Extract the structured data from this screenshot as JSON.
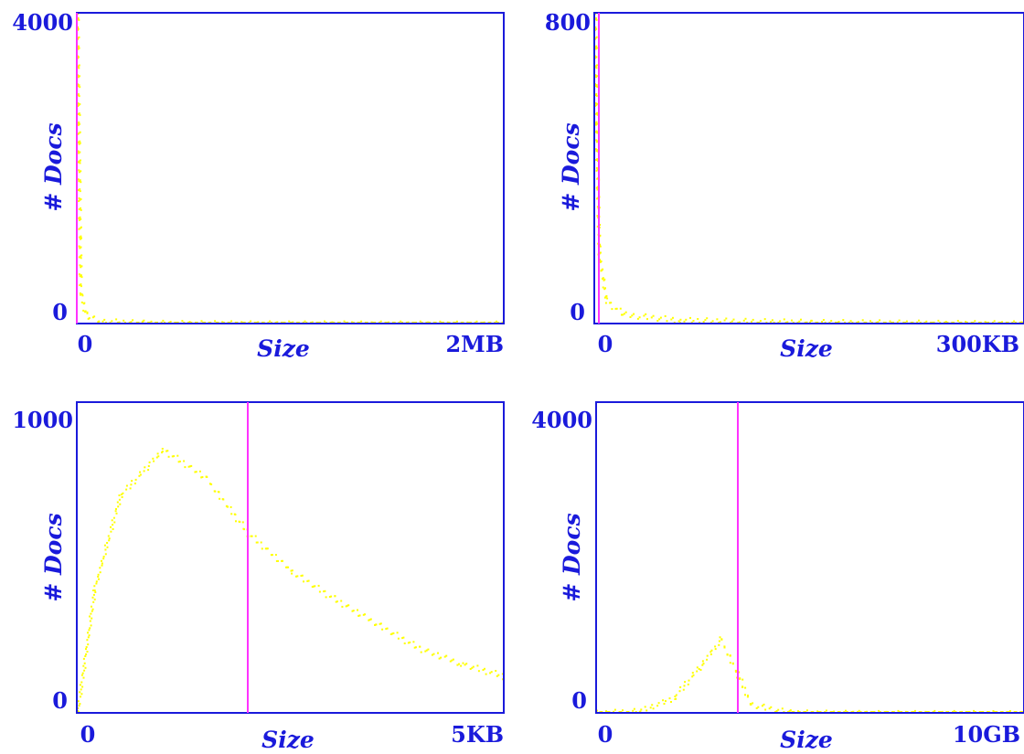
{
  "colors": {
    "frame": "#1a1adb",
    "points": "#ffff00",
    "marker": "#ff33ff",
    "background": "#ffffff"
  },
  "chart_data": [
    {
      "type": "scatter",
      "xlabel": "Size",
      "ylabel": "# Docs",
      "x_tick_labels": [
        "0",
        "2MB"
      ],
      "y_tick_labels": [
        "4000",
        "0"
      ],
      "xlim": [
        0,
        2000000
      ],
      "ylim": [
        0,
        4000
      ],
      "x_unit": "bytes",
      "marker_line_x": 0,
      "series": [
        {
          "shape": "spike at zero, then near-zero flat tail",
          "points": [
            [
              0,
              4000
            ],
            [
              15000,
              400
            ],
            [
              40000,
              120
            ],
            [
              100000,
              40
            ],
            [
              300000,
              15
            ],
            [
              600000,
              8
            ],
            [
              1000000,
              5
            ],
            [
              2000000,
              2
            ]
          ]
        }
      ]
    },
    {
      "type": "scatter",
      "xlabel": "Size",
      "ylabel": "# Docs",
      "x_tick_labels": [
        "0",
        "300KB"
      ],
      "y_tick_labels": [
        "800",
        "0"
      ],
      "xlim": [
        0,
        300000
      ],
      "ylim": [
        0,
        800
      ],
      "x_unit": "bytes",
      "marker_line_x": 1000,
      "series": [
        {
          "shape": "sharp decay",
          "points": [
            [
              200,
              800
            ],
            [
              1000,
              500
            ],
            [
              3000,
              180
            ],
            [
              8000,
              60
            ],
            [
              20000,
              25
            ],
            [
              60000,
              10
            ],
            [
              150000,
              5
            ],
            [
              300000,
              1
            ]
          ]
        }
      ]
    },
    {
      "type": "scatter",
      "xlabel": "Size",
      "ylabel": "# Docs",
      "x_tick_labels": [
        "0",
        "5KB"
      ],
      "y_tick_labels": [
        "1000",
        "0"
      ],
      "xlim": [
        0,
        5000
      ],
      "ylim": [
        0,
        1000
      ],
      "x_unit": "bytes",
      "marker_line_x": 2000,
      "series": [
        {
          "shape": "rise to peak then long decay",
          "points": [
            [
              0,
              0
            ],
            [
              200,
              400
            ],
            [
              500,
              700
            ],
            [
              1000,
              850
            ],
            [
              1500,
              760
            ],
            [
              2000,
              580
            ],
            [
              2500,
              460
            ],
            [
              3000,
              370
            ],
            [
              3500,
              290
            ],
            [
              4000,
              210
            ],
            [
              4500,
              160
            ],
            [
              5000,
              120
            ]
          ]
        }
      ]
    },
    {
      "type": "scatter",
      "xlabel": "Size",
      "ylabel": "# Docs",
      "x_tick_labels": [
        "0",
        "10GB"
      ],
      "y_tick_labels": [
        "4000",
        "0"
      ],
      "xlim": [
        0,
        10000000000
      ],
      "ylim": [
        0,
        4000
      ],
      "x_unit": "bytes",
      "marker_line_x": 3100000000,
      "series": [
        {
          "shape": "bell-like peak",
          "points": [
            [
              0,
              5
            ],
            [
              1000000000,
              30
            ],
            [
              1800000000,
              200
            ],
            [
              2400000000,
              600
            ],
            [
              2900000000,
              950
            ],
            [
              3300000000,
              500
            ],
            [
              3600000000,
              120
            ],
            [
              4500000000,
              10
            ],
            [
              6000000000,
              2
            ],
            [
              10000000000,
              0
            ]
          ]
        }
      ]
    }
  ]
}
